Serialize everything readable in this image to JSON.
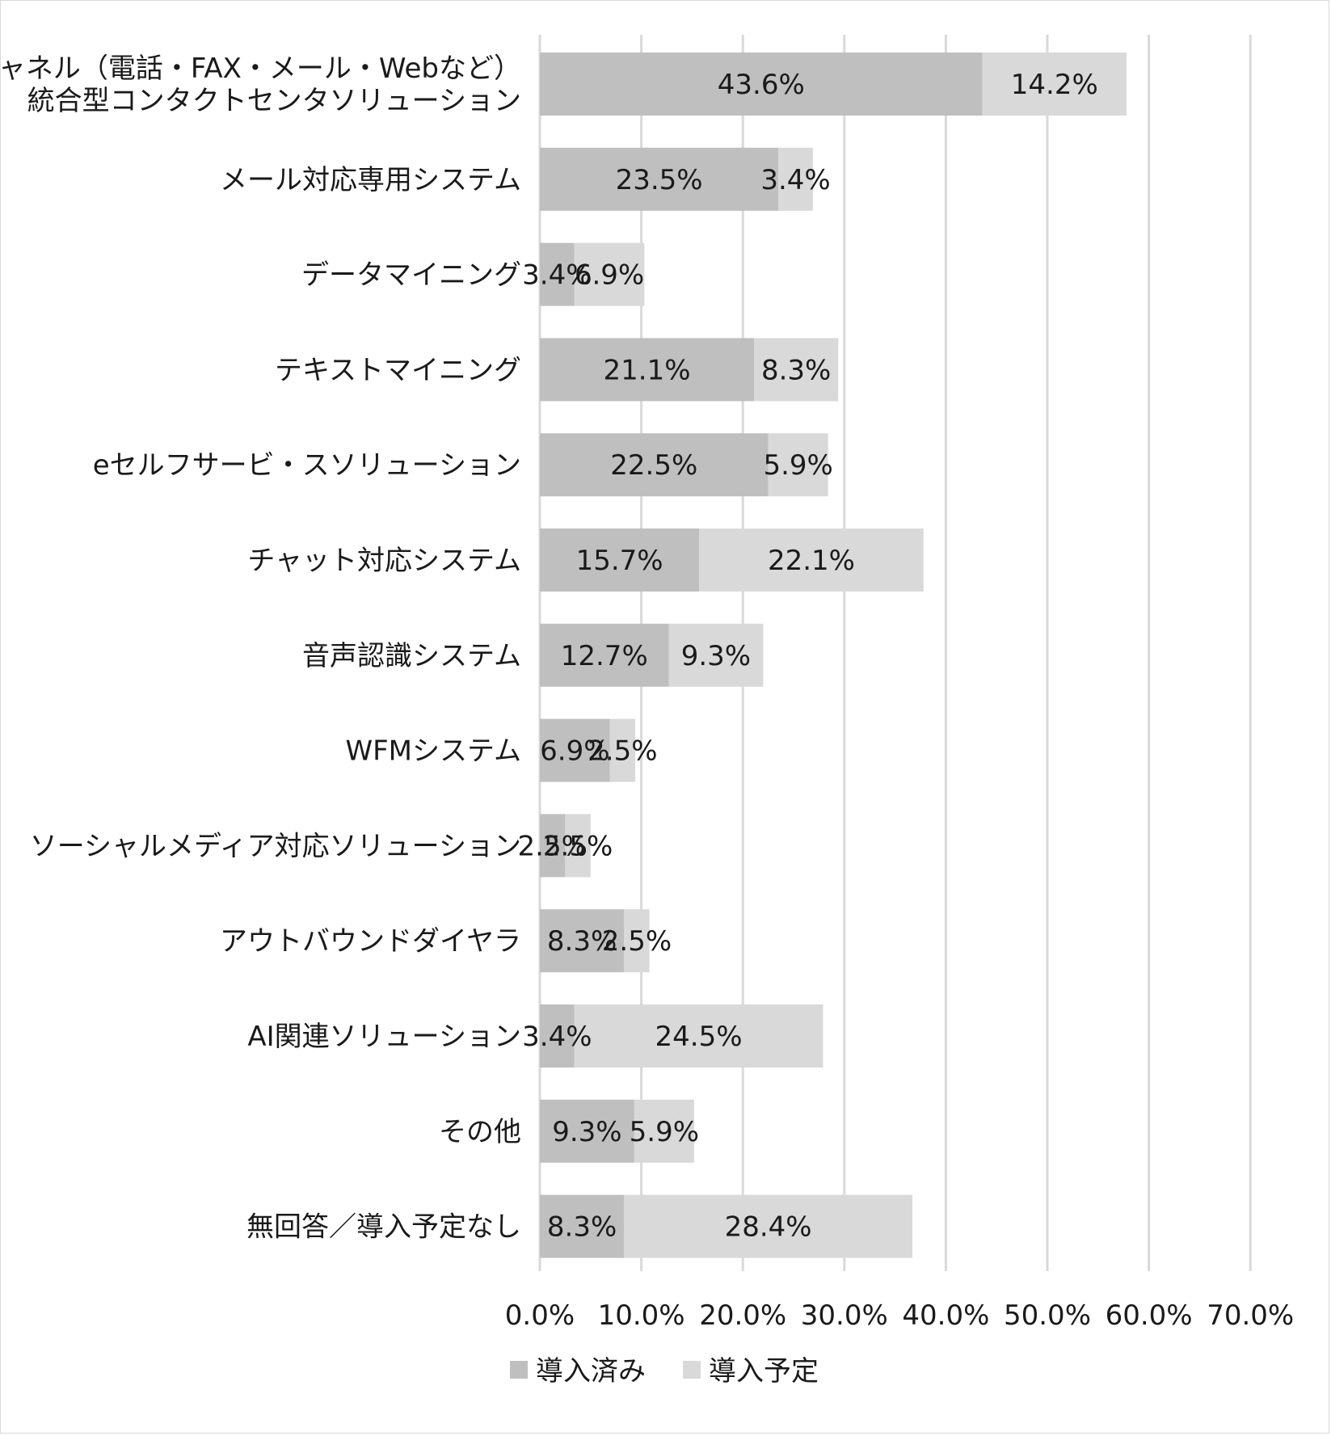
{
  "chart_data": {
    "type": "bar",
    "orientation": "horizontal",
    "stacked": true,
    "categories": [
      [
        "チャネル（電話・FAX・メール・Webなど）",
        "統合型コンタクトセンタソリューション"
      ],
      [
        "メール対応専用システム"
      ],
      [
        "データマイニング"
      ],
      [
        "テキストマイニング"
      ],
      [
        "eセルフサービ・スソリューション"
      ],
      [
        "チャット対応システム"
      ],
      [
        "音声認識システム"
      ],
      [
        "WFMシステム"
      ],
      [
        "ソーシャルメディア対応ソリューション"
      ],
      [
        "アウトバウンドダイヤラ"
      ],
      [
        "AI関連ソリューション"
      ],
      [
        "その他"
      ],
      [
        "無回答／導入予定なし"
      ]
    ],
    "series": [
      {
        "name": "導入済み",
        "color": "#bfbfbf",
        "values": [
          43.6,
          23.5,
          3.4,
          21.1,
          22.5,
          15.7,
          12.7,
          6.9,
          2.5,
          8.3,
          3.4,
          9.3,
          8.3
        ],
        "labels": [
          "43.6%",
          "23.5%",
          "3.4%",
          "21.1%",
          "22.5%",
          "15.7%",
          "12.7%",
          "6.9%",
          "2.5%",
          "8.3%",
          "3.4%",
          "9.3%",
          "8.3%"
        ]
      },
      {
        "name": "導入予定",
        "color": "#d9d9d9",
        "values": [
          14.2,
          3.4,
          6.9,
          8.3,
          5.9,
          22.1,
          9.3,
          2.5,
          2.5,
          2.5,
          24.5,
          5.9,
          28.4
        ],
        "labels": [
          "14.2%",
          "3.4%",
          "6.9%",
          "8.3%",
          "5.9%",
          "22.1%",
          "9.3%",
          "2.5%",
          "2.5%",
          "2.5%",
          "24.5%",
          "5.9%",
          "28.4%"
        ]
      }
    ],
    "xlim": [
      0,
      70
    ],
    "xticks": [
      0,
      10,
      20,
      30,
      40,
      50,
      60,
      70
    ],
    "xtick_labels": [
      "0.0%",
      "10.0%",
      "20.0%",
      "30.0%",
      "40.0%",
      "50.0%",
      "60.0%",
      "70.0%"
    ],
    "grid": true,
    "gridline_color": "#d9d9d9",
    "legend_position": "bottom"
  }
}
